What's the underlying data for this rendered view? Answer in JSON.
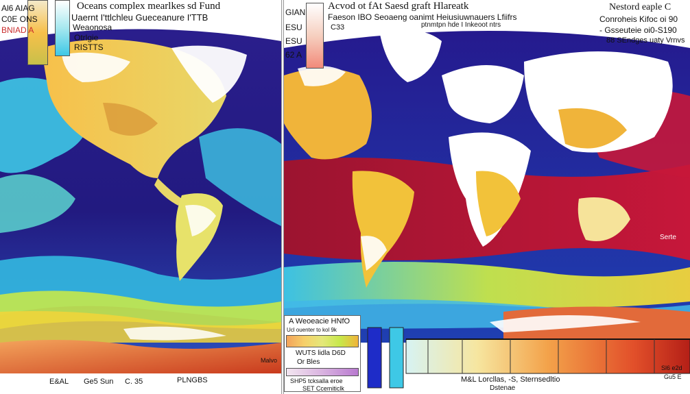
{
  "left_panel": {
    "title": "Oceans complex mearlkes sd Fund",
    "subtitle": "Uaernt I'ttlchleu Gueceanure I'TTB",
    "legend_title": "Weaonosa",
    "legend_item_1": "Otrlgie",
    "legend_item_2": "RISTTS",
    "corner_labels": [
      "Al6 AIAG",
      "C0E ONS",
      "BNIAD A"
    ],
    "map_label": "Malvo",
    "bottom_labels": [
      "E&AL",
      "Ge5 Sun",
      "C. 35",
      "PLNGBS"
    ]
  },
  "right_panel": {
    "title": "Acvod ot fAt Saesd graft Hlareatk",
    "subtitle": "Faeson IBO Seoaeng oanimt Heiusiuwnauers Lfiifrs",
    "subtitle_2": "ptnmtpn hde I Inkeoot ntrs",
    "code": "C33",
    "side_labels": [
      "GIAN",
      "ESU",
      "ESU",
      "62 A"
    ],
    "top_right_title": "Nestord eaple C",
    "top_right_lines": [
      "Conroheis Kifoc oi 90",
      "- Gsseuteie oi0-S190",
      "88 SEndges uaty Vrnvs"
    ],
    "sea_label": "Serte",
    "legend_box": {
      "title": "A Weoeacie HNfO",
      "subtitle": "Ucl ouenter to kol 9k",
      "line_1": "WUTS lidla D6D",
      "line_2": "Or Bles",
      "line_3": "SHP5 tcksalla eroe",
      "line_4": "SET Ccemiticlk"
    },
    "axis_label": "M&L Lorcllas, -S, Sternsedltio",
    "axis_sublabel": "Dstenae",
    "bottom_right_labels": [
      "Sl6 e2d",
      "Gu5 E"
    ],
    "palette": {
      "ocean_deep": "#241a8a",
      "ocean_mid": "#1e7fd6",
      "ocean_light": "#3ec8e6",
      "warm_sea": "#c6173a",
      "land_hot": "#f0b43a",
      "ice": "#ffffff"
    }
  }
}
